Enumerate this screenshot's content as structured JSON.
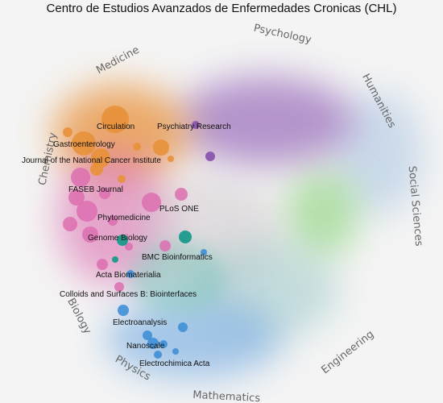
{
  "title": "Centro de Estudios Avanzados de Enfermedades Cronicas (CHL)",
  "disciplines": [
    {
      "id": "psychology",
      "label": "Psychology"
    },
    {
      "id": "humanities",
      "label": "Humanities"
    },
    {
      "id": "social-sciences",
      "label": "Social Sciences"
    },
    {
      "id": "engineering",
      "label": "Engineering"
    },
    {
      "id": "mathematics",
      "label": "Mathematics"
    },
    {
      "id": "physics",
      "label": "Physics"
    },
    {
      "id": "biology",
      "label": "Biology"
    },
    {
      "id": "chemistry",
      "label": "Chemistry"
    },
    {
      "id": "medicine",
      "label": "Medicine"
    }
  ],
  "journals": [
    {
      "id": "circulation",
      "label": "Circulation"
    },
    {
      "id": "psychiatry-research",
      "label": "Psychiatry Research"
    },
    {
      "id": "gastroenterology",
      "label": "Gastroenterology"
    },
    {
      "id": "jnci",
      "label": "Journal of the National Cancer Institute"
    },
    {
      "id": "faseb-journal",
      "label": "FASEB Journal"
    },
    {
      "id": "plos-one",
      "label": "PLoS ONE"
    },
    {
      "id": "phytomedicine",
      "label": "Phytomedicine"
    },
    {
      "id": "genome-biology",
      "label": "Genome Biology"
    },
    {
      "id": "bmc-bioinformatics",
      "label": "BMC Bioinformatics"
    },
    {
      "id": "acta-biomaterialia",
      "label": "Acta Biomaterialia"
    },
    {
      "id": "colloids-surfaces-b",
      "label": "Colloids and Surfaces B: Biointerfaces"
    },
    {
      "id": "electroanalysis",
      "label": "Electroanalysis"
    },
    {
      "id": "nanoscale",
      "label": "Nanoscale"
    },
    {
      "id": "electrochimica-acta",
      "label": "Electrochimica Acta"
    }
  ],
  "colors": {
    "background": "#f4f4f4",
    "medicine": "#e8913a",
    "psychology": "#8a55b0",
    "biology": "#dc6fb0",
    "chemistry": "#dc6fb0",
    "biotechnology": "#1a9a8c",
    "physics": "#3f8fd6",
    "social-sciences": "#7bcf6b",
    "humanities": "#a8c4e2",
    "engineering": "#9ec9c9"
  }
}
